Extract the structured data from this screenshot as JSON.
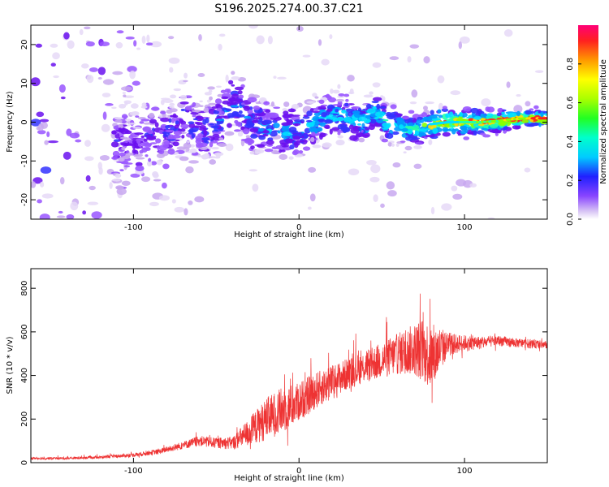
{
  "title": "S196.2025.274.00.37.C21",
  "chart_data": [
    {
      "type": "heatmap",
      "xlabel": "Height of straight line (km)",
      "ylabel": "Frequency (Hz)",
      "xlim": [
        -162,
        150
      ],
      "ylim": [
        -25,
        25
      ],
      "xticks": [
        -100,
        0,
        100
      ],
      "yticks": [
        -20,
        -10,
        0,
        10,
        20
      ],
      "ridge": {
        "x": [
          -150,
          -130,
          -110,
          -100,
          -90,
          -80,
          -70,
          -60,
          -50,
          -40,
          -35,
          -30,
          -25,
          -20,
          -10,
          0,
          10,
          20,
          30,
          40,
          45,
          50,
          55,
          60,
          70,
          80,
          90,
          100,
          110,
          120,
          130,
          140,
          150
        ],
        "y": [
          -5,
          -5,
          -5,
          -5,
          -4,
          -3,
          1,
          -2,
          -1,
          5,
          3,
          0,
          -1,
          -2,
          -3,
          -2,
          0,
          2,
          1,
          0,
          3,
          1,
          -1,
          -1,
          -2,
          -0.5,
          0,
          0,
          0,
          0.3,
          0.8,
          1,
          1
        ]
      },
      "colorbar": {
        "label": "Normalized spectral amplitude",
        "range": [
          0,
          1
        ],
        "ticks": [
          0.0,
          0.2,
          0.4,
          0.6,
          0.8
        ]
      }
    },
    {
      "type": "line",
      "xlabel": "Height of straight line (km)",
      "ylabel": "SNR (10 * v/v)",
      "xlim": [
        -162,
        150
      ],
      "ylim": [
        0,
        890
      ],
      "xticks": [
        -100,
        0,
        100
      ],
      "yticks": [
        0,
        200,
        400,
        600,
        800
      ],
      "color": "#ee3333",
      "envelope": {
        "x": [
          -162,
          -140,
          -120,
          -100,
          -85,
          -70,
          -60,
          -50,
          -40,
          -30,
          -20,
          -10,
          0,
          10,
          20,
          30,
          40,
          50,
          60,
          70,
          75,
          80,
          85,
          90,
          100,
          110,
          120,
          130,
          140,
          150
        ],
        "mean": [
          20,
          20,
          25,
          35,
          50,
          80,
          100,
          90,
          90,
          140,
          200,
          240,
          280,
          330,
          370,
          410,
          440,
          470,
          500,
          520,
          520,
          480,
          520,
          540,
          550,
          550,
          560,
          550,
          545,
          540
        ],
        "spread": [
          10,
          10,
          10,
          15,
          20,
          30,
          40,
          40,
          50,
          110,
          160,
          180,
          150,
          140,
          130,
          120,
          120,
          140,
          160,
          200,
          250,
          260,
          180,
          90,
          60,
          50,
          40,
          35,
          35,
          30
        ]
      }
    }
  ]
}
